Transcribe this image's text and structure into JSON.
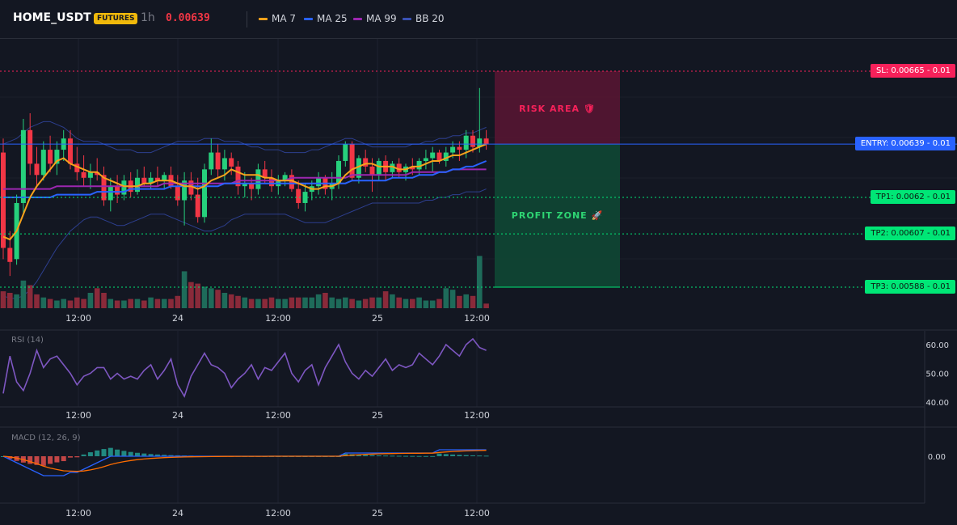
{
  "header": {
    "symbol": "HOME_USDT",
    "badge": "FUTURES",
    "timeframe": "1h",
    "price": "0.00639",
    "price_color": "#f23645",
    "legend": [
      {
        "label": "MA 7",
        "color": "#f7a21b"
      },
      {
        "label": "MA 25",
        "color": "#2962ff"
      },
      {
        "label": "MA 99",
        "color": "#9c27b0"
      },
      {
        "label": "BB 20",
        "color": "#3a52b4"
      }
    ]
  },
  "trade": {
    "risk_label": "RISK AREA 🛡",
    "profit_label": "PROFIT ZONE 🚀",
    "levels": {
      "sl": {
        "label": "SL: 0.00665 - 0.01",
        "price": 0.00665
      },
      "entry": {
        "label": "ENTRY: 0.00639 - 0.01",
        "price": 0.00639
      },
      "tp1": {
        "label": "TP1: 0.0062 - 0.01",
        "price": 0.0062
      },
      "tp2": {
        "label": "TP2: 0.00607 - 0.01",
        "price": 0.00607
      },
      "tp3": {
        "label": "TP3: 0.00588 - 0.01",
        "price": 0.00588
      }
    },
    "colors": {
      "sl": "#f7215a",
      "entry": "#2962ff",
      "tp": "#00e676"
    }
  },
  "time_labels": [
    "12:00",
    "24",
    "12:00",
    "25",
    "12:00"
  ],
  "panes": {
    "rsi": {
      "name": "RSI (14)",
      "ticks": [
        "60.00",
        "50.00",
        "40.00"
      ]
    },
    "macd": {
      "name": "MACD (12, 26, 9)",
      "ticks": [
        "0.00"
      ]
    }
  },
  "chart_data": {
    "type": "line",
    "candle_colors": {
      "up": "#26d07c",
      "down": "#f23645"
    },
    "candles": [
      [
        0.00636,
        0.00641,
        0.00598,
        0.00602
      ],
      [
        0.00602,
        0.00608,
        0.00592,
        0.00597
      ],
      [
        0.00598,
        0.00621,
        0.00596,
        0.00618
      ],
      [
        0.00618,
        0.00648,
        0.00614,
        0.00644
      ],
      [
        0.00644,
        0.0065,
        0.00628,
        0.00632
      ],
      [
        0.00632,
        0.00638,
        0.00624,
        0.00628
      ],
      [
        0.00628,
        0.0064,
        0.00626,
        0.00637
      ],
      [
        0.00637,
        0.00642,
        0.00629,
        0.00632
      ],
      [
        0.00632,
        0.0064,
        0.00628,
        0.00637
      ],
      [
        0.00637,
        0.00644,
        0.00633,
        0.00641
      ],
      [
        0.00641,
        0.00644,
        0.0063,
        0.00632
      ],
      [
        0.00632,
        0.00638,
        0.00626,
        0.00629
      ],
      [
        0.00629,
        0.00635,
        0.00624,
        0.00627
      ],
      [
        0.00627,
        0.00632,
        0.00623,
        0.00629
      ],
      [
        0.00629,
        0.00634,
        0.00626,
        0.00628
      ],
      [
        0.00628,
        0.00631,
        0.00617,
        0.00619
      ],
      [
        0.00619,
        0.00627,
        0.00615,
        0.00624
      ],
      [
        0.00624,
        0.00628,
        0.00618,
        0.00621
      ],
      [
        0.00621,
        0.00628,
        0.00619,
        0.00626
      ],
      [
        0.00626,
        0.00629,
        0.0062,
        0.00622
      ],
      [
        0.00622,
        0.0063,
        0.00621,
        0.00627
      ],
      [
        0.00627,
        0.00631,
        0.00624,
        0.00625
      ],
      [
        0.00625,
        0.00629,
        0.00623,
        0.00627
      ],
      [
        0.00627,
        0.00631,
        0.00624,
        0.00626
      ],
      [
        0.00626,
        0.00629,
        0.00623,
        0.00628
      ],
      [
        0.00628,
        0.00631,
        0.00623,
        0.00624
      ],
      [
        0.00624,
        0.00628,
        0.00617,
        0.00619
      ],
      [
        0.00619,
        0.00629,
        0.0061,
        0.00626
      ],
      [
        0.00626,
        0.00629,
        0.00619,
        0.00621
      ],
      [
        0.00621,
        0.00627,
        0.00611,
        0.00613
      ],
      [
        0.00613,
        0.00632,
        0.00611,
        0.0063
      ],
      [
        0.0063,
        0.00641,
        0.00628,
        0.00636
      ],
      [
        0.00636,
        0.00639,
        0.00627,
        0.0063
      ],
      [
        0.0063,
        0.00637,
        0.00626,
        0.00634
      ],
      [
        0.00634,
        0.00636,
        0.00628,
        0.00631
      ],
      [
        0.00631,
        0.00633,
        0.00621,
        0.00624
      ],
      [
        0.00624,
        0.00629,
        0.0062,
        0.00625
      ],
      [
        0.00625,
        0.00627,
        0.00619,
        0.00623
      ],
      [
        0.00623,
        0.00632,
        0.00621,
        0.0063
      ],
      [
        0.0063,
        0.00633,
        0.00625,
        0.00627
      ],
      [
        0.00627,
        0.0063,
        0.00622,
        0.00624
      ],
      [
        0.00624,
        0.00628,
        0.00621,
        0.00626
      ],
      [
        0.00626,
        0.00629,
        0.00624,
        0.00628
      ],
      [
        0.00628,
        0.0063,
        0.00622,
        0.00623
      ],
      [
        0.00623,
        0.00626,
        0.00616,
        0.00618
      ],
      [
        0.00618,
        0.00625,
        0.00615,
        0.00622
      ],
      [
        0.00622,
        0.00626,
        0.00619,
        0.00624
      ],
      [
        0.00624,
        0.00629,
        0.00621,
        0.00627
      ],
      [
        0.00627,
        0.00628,
        0.00621,
        0.00623
      ],
      [
        0.00623,
        0.00629,
        0.00619,
        0.00625
      ],
      [
        0.00625,
        0.00635,
        0.00623,
        0.00633
      ],
      [
        0.00633,
        0.0064,
        0.00631,
        0.00639
      ],
      [
        0.00639,
        0.0064,
        0.00626,
        0.00627
      ],
      [
        0.00627,
        0.00635,
        0.00625,
        0.00634
      ],
      [
        0.00634,
        0.00637,
        0.00629,
        0.00631
      ],
      [
        0.00631,
        0.00634,
        0.00622,
        0.00628
      ],
      [
        0.00628,
        0.00634,
        0.00626,
        0.00633
      ],
      [
        0.00633,
        0.00635,
        0.00626,
        0.00629
      ],
      [
        0.00629,
        0.00633,
        0.00627,
        0.00632
      ],
      [
        0.00632,
        0.00634,
        0.00627,
        0.00629
      ],
      [
        0.00629,
        0.00632,
        0.00626,
        0.00631
      ],
      [
        0.00631,
        0.00634,
        0.00628,
        0.0063
      ],
      [
        0.0063,
        0.00634,
        0.00628,
        0.00633
      ],
      [
        0.00633,
        0.00637,
        0.0063,
        0.00634
      ],
      [
        0.00634,
        0.00638,
        0.00629,
        0.00636
      ],
      [
        0.00636,
        0.00637,
        0.00632,
        0.00633
      ],
      [
        0.00633,
        0.00638,
        0.00631,
        0.00636
      ],
      [
        0.00636,
        0.0064,
        0.00634,
        0.00638
      ],
      [
        0.00638,
        0.0064,
        0.00633,
        0.00637
      ],
      [
        0.00637,
        0.00644,
        0.00634,
        0.00642
      ],
      [
        0.00642,
        0.00644,
        0.00636,
        0.00638
      ],
      [
        0.00638,
        0.00659,
        0.00636,
        0.00641
      ],
      [
        0.00641,
        0.00644,
        0.00637,
        0.00639
      ]
    ],
    "ma7": [
      0.00606,
      0.00605,
      0.00608,
      0.00614,
      0.0062,
      0.00624,
      0.00627,
      0.0063,
      0.00633,
      0.00634,
      0.00632,
      0.00631,
      0.0063,
      0.00629,
      0.00629,
      0.00627,
      0.00626,
      0.00625,
      0.00624,
      0.00624,
      0.00624,
      0.00625,
      0.00625,
      0.00626,
      0.00626,
      0.00626,
      0.00625,
      0.00624,
      0.00624,
      0.00623,
      0.00624,
      0.00626,
      0.00627,
      0.00628,
      0.0063,
      0.00629,
      0.00628,
      0.00628,
      0.00628,
      0.00627,
      0.00627,
      0.00626,
      0.00626,
      0.00626,
      0.00625,
      0.00624,
      0.00623,
      0.00623,
      0.00624,
      0.00624,
      0.00625,
      0.00628,
      0.0063,
      0.00631,
      0.00632,
      0.00632,
      0.00631,
      0.00631,
      0.00631,
      0.0063,
      0.0063,
      0.00631,
      0.00631,
      0.00632,
      0.00633,
      0.00633,
      0.00634,
      0.00635,
      0.00635,
      0.00636,
      0.00637,
      0.00638,
      0.00639
    ],
    "ma25": [
      0.0062,
      0.0062,
      0.0062,
      0.0062,
      0.0062,
      0.0062,
      0.0062,
      0.0062,
      0.00621,
      0.00621,
      0.00621,
      0.00621,
      0.00621,
      0.00621,
      0.00622,
      0.00622,
      0.00622,
      0.00622,
      0.00622,
      0.00623,
      0.00623,
      0.00623,
      0.00623,
      0.00623,
      0.00623,
      0.00624,
      0.00624,
      0.00624,
      0.00624,
      0.00624,
      0.00624,
      0.00624,
      0.00624,
      0.00625,
      0.00625,
      0.00625,
      0.00625,
      0.00625,
      0.00625,
      0.00625,
      0.00625,
      0.00625,
      0.00625,
      0.00625,
      0.00625,
      0.00625,
      0.00625,
      0.00625,
      0.00625,
      0.00625,
      0.00625,
      0.00625,
      0.00626,
      0.00626,
      0.00626,
      0.00626,
      0.00626,
      0.00626,
      0.00627,
      0.00627,
      0.00627,
      0.00627,
      0.00628,
      0.00628,
      0.00628,
      0.00629,
      0.00629,
      0.0063,
      0.0063,
      0.00631,
      0.00631,
      0.00632,
      0.00633
    ],
    "ma99": [
      0.00623,
      0.00623,
      0.00623,
      0.00623,
      0.00623,
      0.00623,
      0.00623,
      0.00623,
      0.00624,
      0.00624,
      0.00624,
      0.00624,
      0.00624,
      0.00624,
      0.00624,
      0.00624,
      0.00624,
      0.00624,
      0.00624,
      0.00624,
      0.00624,
      0.00624,
      0.00624,
      0.00624,
      0.00625,
      0.00625,
      0.00625,
      0.00625,
      0.00625,
      0.00625,
      0.00625,
      0.00625,
      0.00625,
      0.00625,
      0.00625,
      0.00626,
      0.00626,
      0.00626,
      0.00626,
      0.00626,
      0.00626,
      0.00626,
      0.00626,
      0.00627,
      0.00627,
      0.00627,
      0.00627,
      0.00627,
      0.00627,
      0.00627,
      0.00627,
      0.00627,
      0.00628,
      0.00628,
      0.00628,
      0.00628,
      0.00628,
      0.00628,
      0.00628,
      0.00628,
      0.00628,
      0.00629,
      0.00629,
      0.00629,
      0.00629,
      0.00629,
      0.00629,
      0.0063,
      0.0063,
      0.0063,
      0.0063,
      0.0063,
      0.0063
    ],
    "bb_upper": [
      0.00639,
      0.0064,
      0.00641,
      0.00643,
      0.00645,
      0.00646,
      0.00647,
      0.00647,
      0.00646,
      0.00645,
      0.00643,
      0.00641,
      0.0064,
      0.0064,
      0.0064,
      0.00639,
      0.00638,
      0.00637,
      0.00637,
      0.00637,
      0.00636,
      0.00636,
      0.00636,
      0.00637,
      0.00638,
      0.00639,
      0.0064,
      0.0064,
      0.0064,
      0.0064,
      0.00641,
      0.00641,
      0.00641,
      0.0064,
      0.0064,
      0.0064,
      0.00639,
      0.00638,
      0.00638,
      0.00637,
      0.00637,
      0.00637,
      0.00636,
      0.00636,
      0.00636,
      0.00636,
      0.00637,
      0.00637,
      0.00638,
      0.00639,
      0.0064,
      0.00641,
      0.00641,
      0.0064,
      0.00639,
      0.00638,
      0.00638,
      0.00638,
      0.00638,
      0.00638,
      0.00638,
      0.00639,
      0.00639,
      0.0064,
      0.0064,
      0.00641,
      0.00641,
      0.00642,
      0.00642,
      0.00643,
      0.00643,
      0.00644,
      0.00645
    ],
    "bb_lower": [
      0.00585,
      0.00584,
      0.00584,
      0.00585,
      0.00587,
      0.0059,
      0.00594,
      0.00598,
      0.00602,
      0.00605,
      0.00608,
      0.0061,
      0.00612,
      0.00613,
      0.00613,
      0.00612,
      0.00611,
      0.0061,
      0.0061,
      0.00611,
      0.00612,
      0.00613,
      0.00614,
      0.00614,
      0.00614,
      0.00613,
      0.00612,
      0.00611,
      0.0061,
      0.00609,
      0.00608,
      0.00608,
      0.00609,
      0.0061,
      0.00612,
      0.00613,
      0.00614,
      0.00614,
      0.00614,
      0.00614,
      0.00614,
      0.00614,
      0.00614,
      0.00613,
      0.00612,
      0.00611,
      0.00611,
      0.00611,
      0.00611,
      0.00612,
      0.00613,
      0.00614,
      0.00615,
      0.00616,
      0.00617,
      0.00618,
      0.00618,
      0.00618,
      0.00618,
      0.00618,
      0.00618,
      0.00618,
      0.00618,
      0.00619,
      0.00619,
      0.0062,
      0.0062,
      0.00621,
      0.00621,
      0.00622,
      0.00622,
      0.00622,
      0.00623
    ],
    "volume": [
      22,
      20,
      18,
      36,
      30,
      18,
      14,
      12,
      10,
      12,
      10,
      14,
      12,
      20,
      26,
      20,
      12,
      10,
      10,
      12,
      12,
      10,
      14,
      12,
      12,
      12,
      16,
      48,
      34,
      32,
      28,
      26,
      24,
      20,
      18,
      16,
      14,
      12,
      12,
      12,
      14,
      12,
      12,
      14,
      14,
      14,
      14,
      18,
      20,
      14,
      12,
      14,
      12,
      10,
      12,
      14,
      14,
      22,
      18,
      14,
      12,
      12,
      14,
      10,
      10,
      12,
      26,
      24,
      16,
      18,
      16,
      68,
      6
    ],
    "rsi": [
      43,
      56,
      47,
      44,
      50,
      58,
      52,
      55,
      56,
      53,
      50,
      46,
      49,
      50,
      52,
      52,
      48,
      50,
      48,
      49,
      48,
      51,
      53,
      48,
      51,
      55,
      46,
      42,
      49,
      53,
      57,
      53,
      52,
      50,
      45,
      48,
      50,
      53,
      48,
      52,
      51,
      54,
      57,
      50,
      47,
      51,
      53,
      46,
      52,
      56,
      60,
      54,
      50,
      48,
      51,
      49,
      52,
      55,
      51,
      53,
      52,
      53,
      57,
      55,
      53,
      56,
      60,
      58,
      56,
      60,
      62,
      59,
      58
    ],
    "macd": [
      0.0,
      -0.0001,
      -0.0002,
      -0.0003,
      -0.0004,
      -0.0005,
      -0.0006,
      -0.0006,
      -0.0006,
      -0.0006,
      -0.0005,
      -0.0005,
      -0.0004,
      -0.0003,
      -0.0002,
      -0.0001,
      0.0,
      0.0,
      0.0,
      0.0,
      0.0,
      0.0,
      0.0,
      0.0,
      0.0,
      0.0,
      0.0,
      0.0,
      0.0,
      0.0,
      0.0,
      0.0,
      0.0,
      0.0,
      0.0,
      0.0,
      0.0,
      0.0,
      0.0,
      0.0,
      0.0,
      0.0,
      0.0,
      0.0,
      0.0,
      0.0,
      0.0,
      0.0,
      0.0,
      0.0,
      0.0,
      0.0001,
      0.0001,
      0.0001,
      0.0001,
      0.0001,
      0.0001,
      0.0001,
      0.0001,
      0.0001,
      0.0001,
      0.0001,
      0.0001,
      0.0001,
      0.0001,
      0.0002,
      0.0002,
      0.0002,
      0.0002,
      0.0002,
      0.0002,
      0.0002,
      0.0002
    ]
  }
}
